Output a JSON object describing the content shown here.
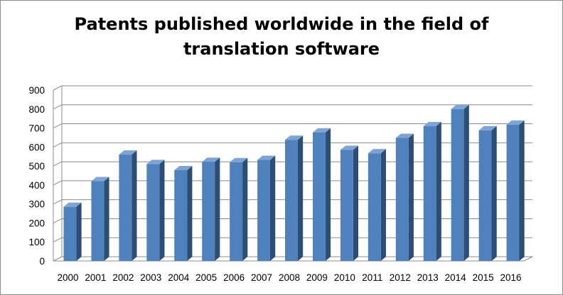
{
  "chart_data": {
    "type": "bar",
    "style": "3d-column",
    "title_lines": [
      "Patents published worldwide in the field of",
      "translation software"
    ],
    "categories": [
      "2000",
      "2001",
      "2002",
      "2003",
      "2004",
      "2005",
      "2006",
      "2007",
      "2008",
      "2009",
      "2010",
      "2011",
      "2012",
      "2013",
      "2014",
      "2015",
      "2016"
    ],
    "values": [
      285,
      420,
      560,
      510,
      478,
      522,
      520,
      532,
      638,
      677,
      585,
      567,
      648,
      710,
      800,
      688,
      718
    ],
    "ylim": [
      0,
      900
    ],
    "yticks": [
      0,
      100,
      200,
      300,
      400,
      500,
      600,
      700,
      800,
      900
    ],
    "xlabel": "",
    "ylabel": "",
    "grid": true,
    "legend": "none",
    "colors": {
      "bar_front": "#4f81bd",
      "bar_side": "#2c4d75",
      "bar_top": "#7fa4d4",
      "grid": "#8c8c8c",
      "wall": "#ffffff"
    }
  }
}
